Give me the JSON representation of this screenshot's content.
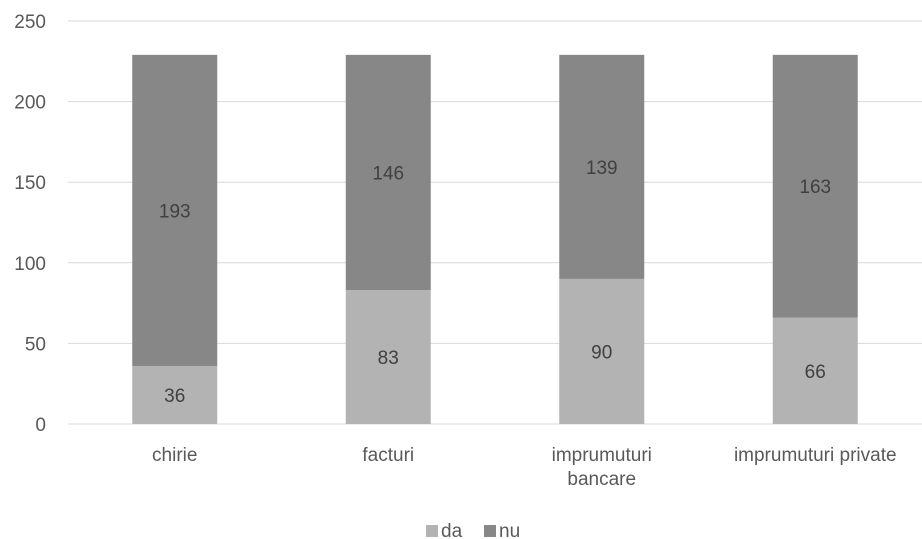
{
  "chart_data": {
    "type": "bar",
    "stacked": true,
    "categories": [
      [
        "chirie"
      ],
      [
        "facturi"
      ],
      [
        "imprumuturi",
        "bancare"
      ],
      [
        "imprumuturi private"
      ]
    ],
    "series": [
      {
        "name": "da",
        "values": [
          36,
          83,
          90,
          66
        ],
        "color": "#b3b3b3"
      },
      {
        "name": "nu",
        "values": [
          193,
          146,
          139,
          163
        ],
        "color": "#878787"
      }
    ],
    "ylim": [
      0,
      250
    ],
    "yticks": [
      0,
      50,
      100,
      150,
      200,
      250
    ],
    "grid": true,
    "legend_position": "bottom",
    "title": "",
    "xlabel": "",
    "ylabel": ""
  }
}
